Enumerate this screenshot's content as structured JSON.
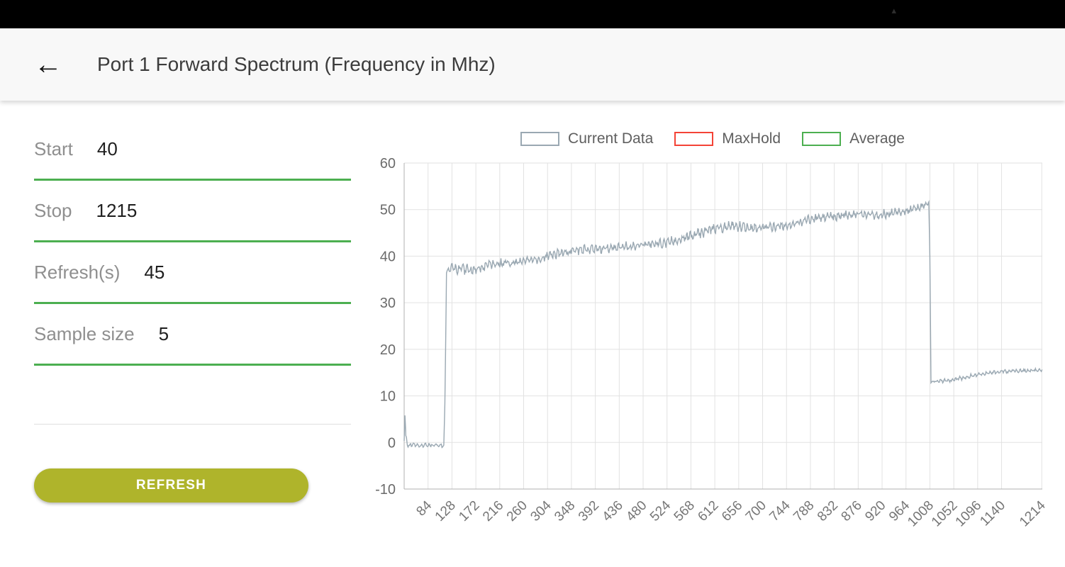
{
  "status_bar": {
    "caret_icon": "▴"
  },
  "header": {
    "back_icon": "←",
    "title": "Port 1 Forward Spectrum (Frequency in Mhz)"
  },
  "form": {
    "fields": [
      {
        "label": "Start",
        "value": "40"
      },
      {
        "label": "Stop",
        "value": "1215"
      },
      {
        "label": "Refresh(s)",
        "value": "45"
      },
      {
        "label": "Sample size",
        "value": "5"
      }
    ],
    "refresh_button_label": "REFRESH"
  },
  "colors": {
    "field_underline": "#4CAF50",
    "refresh_button": "#afb42b",
    "grid": "#e2e2e2",
    "axis": "#b0b0b0",
    "axis_text": "#757575"
  },
  "chart_data": {
    "type": "line",
    "title": "",
    "xlabel": "",
    "ylabel": "",
    "grid": true,
    "xlim": [
      40,
      1215
    ],
    "ylim": [
      -10,
      60
    ],
    "x_ticks": [
      84,
      128,
      172,
      216,
      260,
      304,
      348,
      392,
      436,
      480,
      524,
      568,
      612,
      656,
      700,
      744,
      788,
      832,
      876,
      920,
      964,
      1008,
      1052,
      1096,
      1140,
      1214
    ],
    "y_ticks": [
      60,
      50,
      40,
      30,
      20,
      10,
      0,
      -10
    ],
    "legend": {
      "position": "top",
      "entries": [
        {
          "label": "Current Data",
          "color": "#9aa8b2"
        },
        {
          "label": "MaxHold",
          "color": "#f44336"
        },
        {
          "label": "Average",
          "color": "#4caf50"
        }
      ]
    },
    "series": [
      {
        "name": "Current Data",
        "color": "#9aa8b2",
        "noise_seed": 9,
        "sample_step": 1.2,
        "profile": [
          [
            40,
            0.5,
            0.2
          ],
          [
            41.5,
            5.8,
            0.2
          ],
          [
            43,
            1.5,
            0.4
          ],
          [
            46,
            -0.6,
            0.5
          ],
          [
            113,
            -0.6,
            0.5
          ],
          [
            115,
            8,
            0.8
          ],
          [
            118,
            36.8,
            0.6
          ],
          [
            126,
            37.4,
            1.1
          ],
          [
            165,
            37.1,
            1.2
          ],
          [
            205,
            38.4,
            1.1
          ],
          [
            245,
            38.6,
            0.9
          ],
          [
            285,
            39.4,
            1.0
          ],
          [
            325,
            40.7,
            1.1
          ],
          [
            365,
            41.3,
            1.1
          ],
          [
            405,
            41.6,
            1.0
          ],
          [
            445,
            42.0,
            1.0
          ],
          [
            485,
            42.4,
            0.9
          ],
          [
            525,
            42.9,
            1.0
          ],
          [
            565,
            44.2,
            1.1
          ],
          [
            605,
            45.8,
            1.2
          ],
          [
            645,
            46.4,
            1.1
          ],
          [
            685,
            46.1,
            1.0
          ],
          [
            725,
            46.4,
            1.1
          ],
          [
            765,
            47.3,
            1.1
          ],
          [
            805,
            48.1,
            1.1
          ],
          [
            845,
            48.8,
            1.0
          ],
          [
            885,
            49.1,
            1.0
          ],
          [
            915,
            48.8,
            1.1
          ],
          [
            945,
            49.4,
            0.9
          ],
          [
            975,
            50.1,
            0.9
          ],
          [
            998,
            50.9,
            0.7
          ],
          [
            1006,
            51.4,
            0.4
          ],
          [
            1008,
            40,
            0.3
          ],
          [
            1010,
            13.1,
            0.3
          ],
          [
            1045,
            13.3,
            0.45
          ],
          [
            1085,
            14.3,
            0.45
          ],
          [
            1125,
            15.1,
            0.45
          ],
          [
            1170,
            15.4,
            0.4
          ],
          [
            1215,
            15.5,
            0.35
          ]
        ]
      }
    ]
  }
}
